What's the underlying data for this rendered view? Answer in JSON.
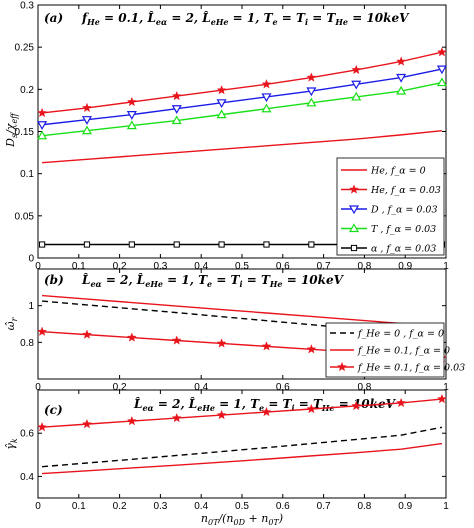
{
  "figure": {
    "xlabel": "n_0T/(n_0D + n_0T)"
  },
  "chart_data": [
    {
      "type": "line",
      "panel": "(a)",
      "title": "f_He = 0.1, L̂_eα = 2, L̂_eHe = 1, T_e = T_i = T_He = 10keV",
      "ylabel": "D_s/χ_eff",
      "xlim": [
        0,
        1
      ],
      "ylim": [
        0,
        0.3
      ],
      "xticks": [
        0,
        0.1,
        0.2,
        0.3,
        0.4,
        0.5,
        0.6,
        0.7,
        0.8,
        0.9,
        1
      ],
      "yticks": [
        0,
        0.05,
        0.1,
        0.15,
        0.2,
        0.25,
        0.3
      ],
      "ytick_labels": [
        "0",
        "0.05",
        "0.1",
        "0.15",
        "0.2",
        "0.25",
        "0.3"
      ],
      "legend_position": "lower-right",
      "x": [
        0.01,
        0.12,
        0.23,
        0.34,
        0.45,
        0.56,
        0.67,
        0.78,
        0.89,
        0.99
      ],
      "series": [
        {
          "name": "He, f_α = 0",
          "color": "#e8141c",
          "marker": "none",
          "values": [
            0.113,
            0.117,
            0.121,
            0.125,
            0.129,
            0.133,
            0.137,
            0.141,
            0.146,
            0.151
          ]
        },
        {
          "name": "He, f_α = 0.03",
          "color": "#e8141c",
          "marker": "star",
          "values": [
            0.172,
            0.178,
            0.185,
            0.192,
            0.199,
            0.206,
            0.214,
            0.223,
            0.233,
            0.244
          ]
        },
        {
          "name": "D , f_α = 0.03",
          "color": "#1c1ce8",
          "marker": "triangle-down",
          "values": [
            0.158,
            0.164,
            0.17,
            0.177,
            0.184,
            0.191,
            0.198,
            0.206,
            0.214,
            0.224
          ]
        },
        {
          "name": "T , f_α = 0.03",
          "color": "#18e018",
          "marker": "triangle-up",
          "values": [
            0.145,
            0.151,
            0.157,
            0.163,
            0.17,
            0.177,
            0.184,
            0.191,
            0.198,
            0.208
          ]
        },
        {
          "name": "α , f_α = 0.03",
          "color": "#000000",
          "marker": "square",
          "values": [
            0.016,
            0.016,
            0.016,
            0.016,
            0.016,
            0.016,
            0.016,
            0.016,
            0.016,
            0.016
          ]
        }
      ]
    },
    {
      "type": "line",
      "panel": "(b)",
      "title": "L̂_eα = 2, L̂_eHe = 1, T_e = T_i = T_He = 10keV",
      "ylabel": "ω̂_r",
      "xlim": [
        0,
        1
      ],
      "ylim": [
        0.6,
        1.2
      ],
      "xticks": [
        0,
        0.2,
        0.4,
        0.6,
        0.8,
        1
      ],
      "yticks": [
        0.8,
        1
      ],
      "ytick_labels": [
        "0.8",
        "1"
      ],
      "legend_position": "lower-right",
      "x": [
        0.01,
        0.12,
        0.23,
        0.34,
        0.45,
        0.56,
        0.67,
        0.78,
        0.89,
        0.99
      ],
      "series": [
        {
          "name": "f_He = 0 , f_α = 0",
          "color": "#000000",
          "dash": "6,4",
          "marker": "none",
          "values": [
            1.025,
            1.004,
            0.983,
            0.962,
            0.94,
            0.918,
            0.896,
            0.874,
            0.852,
            0.82
          ]
        },
        {
          "name": "f_He = 0.1, f_α = 0",
          "color": "#e8141c",
          "marker": "none",
          "values": [
            1.055,
            1.036,
            1.017,
            0.998,
            0.979,
            0.96,
            0.941,
            0.922,
            0.903,
            0.883
          ]
        },
        {
          "name": "f_He = 0.1, f_α = 0.03",
          "color": "#e8141c",
          "marker": "star",
          "values": [
            0.858,
            0.842,
            0.826,
            0.81,
            0.794,
            0.778,
            0.762,
            0.746,
            0.73,
            0.715
          ]
        }
      ]
    },
    {
      "type": "line",
      "panel": "(c)",
      "title": "L̂_eα = 2, L̂_eHe = 1, T_e = T_i = T_He = 10keV",
      "ylabel": "γ̂_k",
      "xlim": [
        0,
        1
      ],
      "ylim": [
        0.3,
        0.8
      ],
      "xticks": [
        0,
        0.1,
        0.2,
        0.3,
        0.4,
        0.5,
        0.6,
        0.7,
        0.8,
        0.9,
        1
      ],
      "yticks": [
        0.4,
        0.6
      ],
      "ytick_labels": [
        "0.4",
        "0.6"
      ],
      "x": [
        0.01,
        0.12,
        0.23,
        0.34,
        0.45,
        0.56,
        0.67,
        0.78,
        0.89,
        0.99
      ],
      "series": [
        {
          "name": "f_He = 0 , f_α = 0",
          "color": "#000000",
          "dash": "6,4",
          "marker": "none",
          "values": [
            0.445,
            0.462,
            0.479,
            0.497,
            0.515,
            0.533,
            0.552,
            0.571,
            0.591,
            0.627
          ]
        },
        {
          "name": "f_He = 0.1, f_α = 0",
          "color": "#e8141c",
          "marker": "none",
          "values": [
            0.413,
            0.426,
            0.439,
            0.452,
            0.466,
            0.48,
            0.495,
            0.51,
            0.526,
            0.552
          ]
        },
        {
          "name": "f_He = 0.1, f_α = 0.03",
          "color": "#e8141c",
          "marker": "star",
          "values": [
            0.628,
            0.642,
            0.656,
            0.67,
            0.684,
            0.698,
            0.712,
            0.726,
            0.74,
            0.758
          ]
        }
      ]
    }
  ]
}
